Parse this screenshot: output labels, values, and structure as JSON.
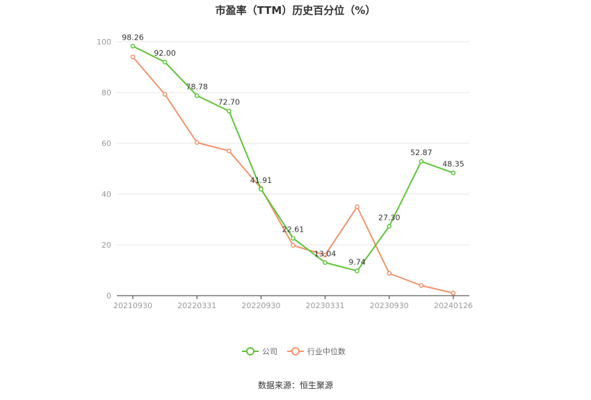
{
  "chart_data": {
    "type": "line",
    "title": "市盈率（TTM）历史百分位（%）",
    "xlabel": "",
    "ylabel": "",
    "x": [
      "20210930",
      "20211231",
      "20220331",
      "20220630",
      "20220930",
      "20221231",
      "20230331",
      "20230630",
      "20230930",
      "20231231",
      "20240126"
    ],
    "x_tick_labels": [
      "20210930",
      "20220331",
      "20220930",
      "20230331",
      "20230930",
      "20240126"
    ],
    "x_tick_indices": [
      0,
      2,
      4,
      6,
      8,
      10
    ],
    "ylim": [
      0,
      100
    ],
    "y_ticks": [
      0,
      20,
      40,
      60,
      80,
      100
    ],
    "grid": true,
    "legend_position": "bottom",
    "series": [
      {
        "name": "公司",
        "color": "#5cc437",
        "values": [
          98.26,
          92.0,
          78.78,
          72.7,
          41.91,
          22.61,
          13.04,
          9.74,
          27.3,
          52.87,
          48.35
        ],
        "labels": [
          "98.26",
          "92.00",
          "78.78",
          "72.70",
          "41.91",
          "22.61",
          "13.04",
          "9.74",
          "27.30",
          "52.87",
          "48.35"
        ]
      },
      {
        "name": "行业中位数",
        "color": "#f39168",
        "values": [
          94.0,
          79.3,
          60.3,
          57.0,
          42.3,
          19.8,
          16.0,
          35.0,
          8.8,
          4.0,
          1.0
        ]
      }
    ],
    "source": "数据来源：恒生聚源"
  }
}
